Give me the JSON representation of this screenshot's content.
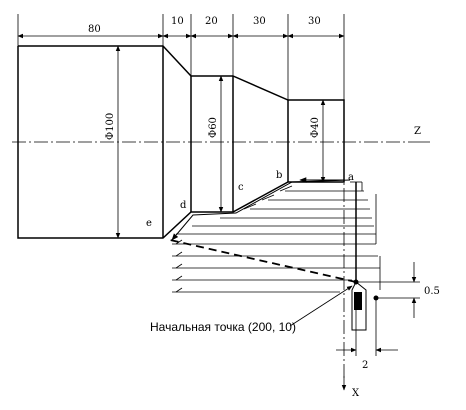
{
  "dimensions": {
    "d80": "80",
    "d10": "10",
    "d20": "20",
    "d30a": "30",
    "d30b": "30",
    "d2": "2",
    "d05": "0.5"
  },
  "diameters": {
    "phi100": "Φ100",
    "phi60": "Φ60",
    "phi40": "Φ40"
  },
  "points": {
    "a": "a",
    "b": "b",
    "c": "c",
    "d": "d",
    "e": "e"
  },
  "axes": {
    "z": "Z",
    "x": "X"
  },
  "caption": "Начальная точка (200, 10)"
}
